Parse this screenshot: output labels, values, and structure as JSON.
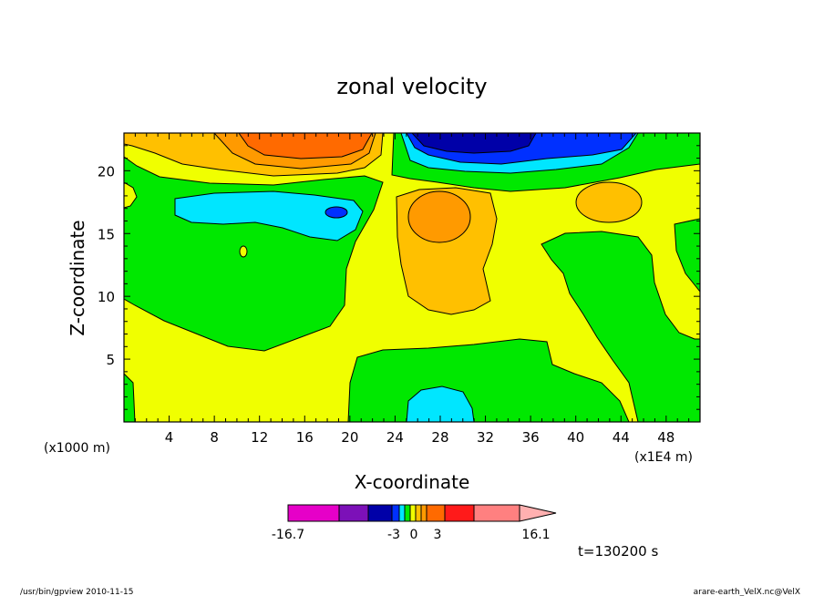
{
  "chart_data": {
    "type": "heatmap",
    "title": "zonal velocity",
    "xlabel": "X-coordinate",
    "ylabel": "Z-coordinate",
    "x_unit": "(x1E4 m)",
    "y_unit": "(x1000 m)",
    "x_ticks": [
      "4",
      "8",
      "12",
      "16",
      "20",
      "24",
      "28",
      "32",
      "36",
      "40",
      "44",
      "48"
    ],
    "y_ticks": [
      "5",
      "10",
      "15",
      "20"
    ],
    "xlim": [
      0,
      51
    ],
    "ylim": [
      0,
      23
    ],
    "time_label": "t=130200 s",
    "colorbar": {
      "min_label": "-16.7",
      "max_label": "16.1",
      "tick_labels": [
        "-16.7",
        "-3",
        "0",
        "3",
        "16.1"
      ],
      "bins": [
        {
          "color": "#e600c8"
        },
        {
          "color": "#7c10b8"
        },
        {
          "color": "#0000a8"
        },
        {
          "color": "#0030ff"
        },
        {
          "color": "#00e6ff"
        },
        {
          "color": "#00e800"
        },
        {
          "color": "#f0ff00"
        },
        {
          "color": "#ffc000"
        },
        {
          "color": "#ff9a00"
        },
        {
          "color": "#ff6a00"
        },
        {
          "color": "#ff1a1a"
        },
        {
          "color": "#ff8080"
        },
        {
          "color": "#ffb0b0"
        }
      ]
    },
    "palette": {
      "yellow": "#f0ff00",
      "green": "#00e800",
      "cyan": "#00e6ff",
      "lightorange": "#ffc000",
      "orange": "#ff9a00",
      "darkorange": "#ff6a00",
      "blue": "#0030ff",
      "navy": "#0000a8"
    }
  },
  "footer": {
    "left": "/usr/bin/gpview  2010-11-15",
    "right": "arare-earth_VelX.nc@VelX"
  }
}
